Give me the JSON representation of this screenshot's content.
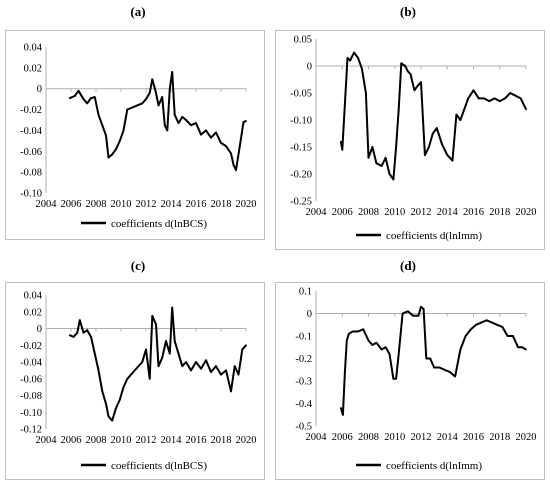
{
  "panels": [
    {
      "label": "(a)"
    },
    {
      "label": "(b)"
    },
    {
      "label": "(c)"
    },
    {
      "label": "(d)"
    }
  ],
  "chart_data": [
    {
      "type": "line",
      "panel": "(a)",
      "xlabel": "",
      "ylabel": "",
      "xticks": [
        "2004",
        "2006",
        "2008",
        "2010",
        "2012",
        "2014",
        "2016",
        "2018",
        "2020"
      ],
      "yticks": [
        "0.04",
        "0.02",
        "0",
        "-0.02",
        "-0.04",
        "-0.06",
        "-0.08",
        "-0.10"
      ],
      "xlim": [
        2004,
        2020
      ],
      "ylim": [
        -0.1,
        0.04
      ],
      "legend": "bottom",
      "grid": false,
      "line_color": "#000000",
      "series": [
        {
          "name": "coefficients d(lnBCS)",
          "x": [
            2005.9,
            2006.3,
            2006.6,
            2007.0,
            2007.3,
            2007.6,
            2007.9,
            2008.2,
            2008.5,
            2008.8,
            2009.0,
            2009.3,
            2009.6,
            2009.9,
            2010.2,
            2010.5,
            2010.9,
            2011.3,
            2011.7,
            2012.0,
            2012.3,
            2012.5,
            2012.8,
            2013.0,
            2013.3,
            2013.5,
            2013.7,
            2013.9,
            2014.1,
            2014.3,
            2014.6,
            2014.9,
            2015.2,
            2015.6,
            2016.0,
            2016.4,
            2016.8,
            2017.2,
            2017.6,
            2018.0,
            2018.4,
            2018.8,
            2019.0,
            2019.2,
            2019.5,
            2019.8,
            2020.0
          ],
          "y": [
            -0.009,
            -0.007,
            -0.002,
            -0.01,
            -0.014,
            -0.009,
            -0.008,
            -0.025,
            -0.035,
            -0.045,
            -0.066,
            -0.063,
            -0.058,
            -0.05,
            -0.04,
            -0.02,
            -0.018,
            -0.016,
            -0.014,
            -0.01,
            -0.004,
            0.009,
            -0.004,
            -0.016,
            -0.008,
            -0.035,
            -0.04,
            0.0,
            0.016,
            -0.025,
            -0.033,
            -0.027,
            -0.03,
            -0.035,
            -0.033,
            -0.044,
            -0.04,
            -0.047,
            -0.042,
            -0.052,
            -0.055,
            -0.062,
            -0.073,
            -0.078,
            -0.055,
            -0.032,
            -0.031
          ]
        }
      ]
    },
    {
      "type": "line",
      "panel": "(b)",
      "xlabel": "",
      "ylabel": "",
      "xticks": [
        "2004",
        "2006",
        "2008",
        "2010",
        "2012",
        "2014",
        "2016",
        "2018",
        "2020"
      ],
      "yticks": [
        "0.05",
        "0",
        "-0.05",
        "-0.10",
        "-0.15",
        "-0.20",
        "-0.25"
      ],
      "xlim": [
        2004,
        2020
      ],
      "ylim": [
        -0.25,
        0.05
      ],
      "legend": "bottom",
      "grid": false,
      "line_color": "#000000",
      "series": [
        {
          "name": "coefficients d(lnImm)",
          "x": [
            2005.9,
            2006.0,
            2006.2,
            2006.4,
            2006.6,
            2006.9,
            2007.2,
            2007.5,
            2007.8,
            2008.0,
            2008.3,
            2008.6,
            2009.0,
            2009.3,
            2009.6,
            2009.9,
            2010.1,
            2010.3,
            2010.5,
            2010.8,
            2011.0,
            2011.2,
            2011.5,
            2011.8,
            2012.0,
            2012.3,
            2012.6,
            2012.9,
            2013.2,
            2013.6,
            2014.0,
            2014.4,
            2014.7,
            2015.0,
            2015.3,
            2015.6,
            2016.0,
            2016.4,
            2016.8,
            2017.2,
            2017.6,
            2018.0,
            2018.4,
            2018.8,
            2019.2,
            2019.6,
            2020.0
          ],
          "y": [
            -0.14,
            -0.155,
            -0.07,
            0.015,
            0.01,
            0.025,
            0.015,
            -0.005,
            -0.05,
            -0.17,
            -0.15,
            -0.18,
            -0.185,
            -0.17,
            -0.2,
            -0.21,
            -0.15,
            -0.08,
            0.005,
            0.0,
            -0.01,
            -0.015,
            -0.045,
            -0.035,
            -0.03,
            -0.165,
            -0.15,
            -0.125,
            -0.115,
            -0.145,
            -0.165,
            -0.175,
            -0.09,
            -0.1,
            -0.08,
            -0.06,
            -0.045,
            -0.06,
            -0.06,
            -0.065,
            -0.06,
            -0.065,
            -0.06,
            -0.05,
            -0.055,
            -0.06,
            -0.08
          ]
        }
      ]
    },
    {
      "type": "line",
      "panel": "(c)",
      "xlabel": "",
      "ylabel": "",
      "xticks": [
        "2004",
        "2006",
        "2008",
        "2010",
        "2012",
        "2014",
        "2016",
        "2018",
        "2020"
      ],
      "yticks": [
        "0.04",
        "0.02",
        "0",
        "-0.02",
        "-0.04",
        "-0.06",
        "-0.08",
        "-0.10",
        "-0.12"
      ],
      "xlim": [
        2004,
        2020
      ],
      "ylim": [
        -0.12,
        0.04
      ],
      "legend": "bottom",
      "grid": false,
      "line_color": "#000000",
      "series": [
        {
          "name": "coefficients d(lnBCS)",
          "x": [
            2005.9,
            2006.2,
            2006.5,
            2006.7,
            2007.0,
            2007.3,
            2007.6,
            2007.9,
            2008.2,
            2008.5,
            2008.8,
            2009.0,
            2009.3,
            2009.6,
            2009.9,
            2010.2,
            2010.5,
            2010.8,
            2011.1,
            2011.4,
            2011.7,
            2012.0,
            2012.3,
            2012.5,
            2012.8,
            2013.0,
            2013.3,
            2013.6,
            2013.9,
            2014.1,
            2014.3,
            2014.6,
            2014.9,
            2015.2,
            2015.6,
            2016.0,
            2016.4,
            2016.8,
            2017.2,
            2017.6,
            2018.0,
            2018.4,
            2018.8,
            2019.1,
            2019.4,
            2019.7,
            2020.0
          ],
          "y": [
            -0.008,
            -0.01,
            -0.005,
            0.01,
            -0.005,
            -0.002,
            -0.01,
            -0.03,
            -0.05,
            -0.075,
            -0.09,
            -0.105,
            -0.11,
            -0.095,
            -0.085,
            -0.07,
            -0.06,
            -0.055,
            -0.05,
            -0.045,
            -0.04,
            -0.025,
            -0.06,
            0.015,
            0.005,
            -0.045,
            -0.035,
            -0.015,
            -0.03,
            0.025,
            -0.015,
            -0.03,
            -0.045,
            -0.04,
            -0.05,
            -0.04,
            -0.048,
            -0.038,
            -0.052,
            -0.045,
            -0.055,
            -0.05,
            -0.075,
            -0.045,
            -0.055,
            -0.025,
            -0.02
          ]
        }
      ]
    },
    {
      "type": "line",
      "panel": "(d)",
      "xlabel": "",
      "ylabel": "",
      "xticks": [
        "2004",
        "2006",
        "2008",
        "2010",
        "2012",
        "2014",
        "2016",
        "2018",
        "2020"
      ],
      "yticks": [
        "0.1",
        "0",
        "-0.1",
        "-0.2",
        "-0.3",
        "-0.4",
        "-0.5"
      ],
      "xlim": [
        2004,
        2020
      ],
      "ylim": [
        -0.5,
        0.1
      ],
      "legend": "bottom",
      "grid": false,
      "line_color": "#000000",
      "series": [
        {
          "name": "coefficients d(lnImm)",
          "x": [
            2005.9,
            2006.05,
            2006.2,
            2006.35,
            2006.5,
            2006.8,
            2007.2,
            2007.6,
            2008.0,
            2008.3,
            2008.6,
            2009.0,
            2009.3,
            2009.6,
            2009.9,
            2010.1,
            2010.3,
            2010.6,
            2011.0,
            2011.4,
            2011.8,
            2012.0,
            2012.2,
            2012.4,
            2012.7,
            2013.0,
            2013.4,
            2013.8,
            2014.2,
            2014.6,
            2015.0,
            2015.4,
            2015.8,
            2016.2,
            2016.6,
            2017.0,
            2017.4,
            2017.8,
            2018.2,
            2018.6,
            2019.0,
            2019.4,
            2019.7,
            2020.0
          ],
          "y": [
            -0.42,
            -0.45,
            -0.26,
            -0.12,
            -0.09,
            -0.08,
            -0.08,
            -0.07,
            -0.12,
            -0.14,
            -0.13,
            -0.16,
            -0.15,
            -0.18,
            -0.29,
            -0.29,
            -0.18,
            0.0,
            0.01,
            -0.01,
            -0.01,
            0.03,
            0.02,
            -0.2,
            -0.2,
            -0.24,
            -0.24,
            -0.25,
            -0.26,
            -0.28,
            -0.16,
            -0.1,
            -0.07,
            -0.05,
            -0.04,
            -0.03,
            -0.04,
            -0.05,
            -0.06,
            -0.1,
            -0.1,
            -0.15,
            -0.15,
            -0.16
          ]
        }
      ]
    }
  ]
}
